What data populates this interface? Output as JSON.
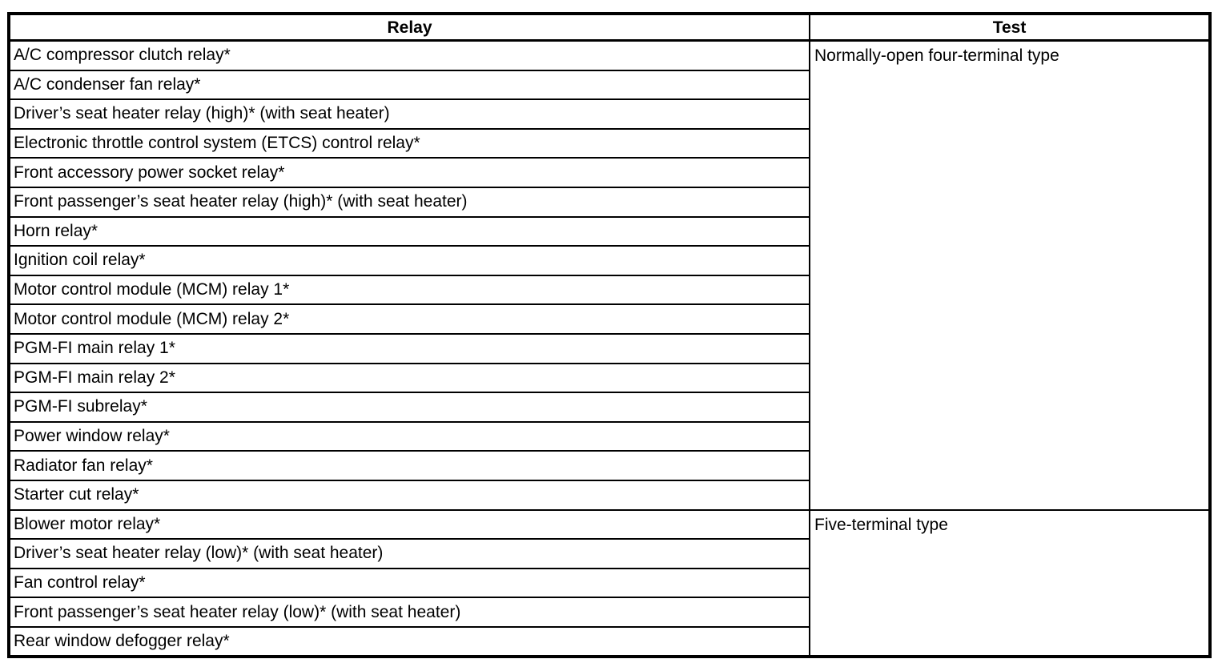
{
  "colors": {
    "border": "#000000",
    "text": "#000000",
    "background": "#ffffff"
  },
  "table": {
    "columns": [
      {
        "label": "Relay"
      },
      {
        "label": "Test"
      }
    ],
    "groups": [
      {
        "test": "Normally-open four-terminal type",
        "relays": [
          "A/C compressor clutch relay*",
          "A/C condenser fan relay*",
          "Driver’s seat heater relay (high)* (with seat heater)",
          "Electronic throttle control system (ETCS) control relay*",
          "Front accessory power socket relay*",
          "Front passenger’s seat heater relay (high)* (with seat heater)",
          "Horn relay*",
          "Ignition coil relay*",
          "Motor control module (MCM) relay 1*",
          "Motor control module (MCM) relay 2*",
          "PGM-FI main relay 1*",
          "PGM-FI main relay 2*",
          "PGM-FI subrelay*",
          "Power window relay*",
          "Radiator fan relay*",
          "Starter cut relay*"
        ]
      },
      {
        "test": "Five-terminal type",
        "relays": [
          "Blower motor relay*",
          "Driver’s seat heater relay (low)* (with seat heater)",
          "Fan control relay*",
          "Front passenger’s seat heater relay (low)* (with seat heater)",
          "Rear window defogger relay*"
        ]
      }
    ]
  }
}
